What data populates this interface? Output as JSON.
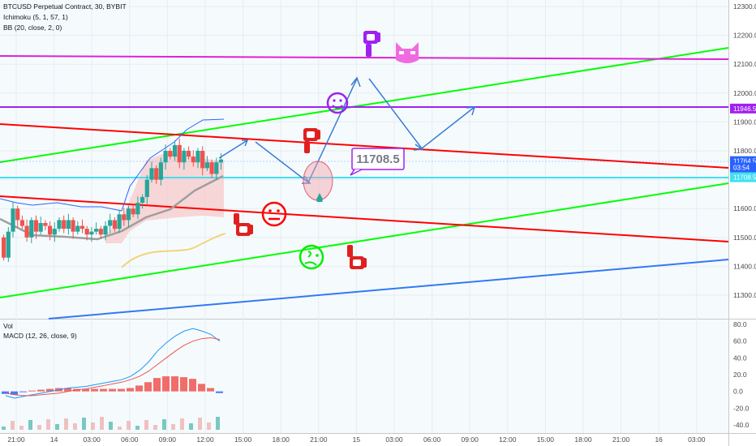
{
  "legend": {
    "title": "BTCUSD Perpetual Contract, 30, BYBIT",
    "ichimoku": "Ichimoku (5, 1, 57, 1)",
    "bb": "BB (20, close, 2, 0)",
    "vol": "Vol",
    "macd": "MACD (12, 26, close, 9)"
  },
  "colors": {
    "up": "#26a69a",
    "down": "#ef5350",
    "red_line": "#ff0000",
    "green_line": "#00ff00",
    "blue_line": "#3179f5",
    "cyan_line": "#40e0f0",
    "purple_line": "#a020f0",
    "magenta_line": "#e020d8",
    "bb_line": "#f5d27a",
    "kijun": "#9e9e9e",
    "ichimoku_blue": "#2962ff"
  },
  "price_axis": {
    "ticks": [
      "12300.0",
      "12200.0",
      "12100.0",
      "12000.0",
      "11900.0",
      "11800.0",
      "11700.0",
      "11600.0",
      "11500.0",
      "11400.0",
      "11300.0"
    ],
    "labels": [
      {
        "text": "11946.5",
        "value": 11946.5,
        "color": "#a020f0"
      },
      {
        "text": "11764.5",
        "value": 11764.5,
        "color": "#2962ff"
      },
      {
        "text": "03:54",
        "value": 11742,
        "color": "#2962ff"
      },
      {
        "text": "11708.5",
        "value": 11708.5,
        "color": "#40e0f0"
      }
    ]
  },
  "macd_axis": {
    "ticks": [
      "80.0",
      "60.0",
      "40.0",
      "20.0",
      "0.0",
      "-20.0",
      "-40.0"
    ]
  },
  "time_axis": {
    "ticks": [
      "21:00",
      "14",
      "03:00",
      "06:00",
      "09:00",
      "12:00",
      "15:00",
      "18:00",
      "21:00",
      "15",
      "03:00",
      "06:00",
      "09:00",
      "12:00",
      "15:00",
      "18:00",
      "21:00",
      "16",
      "03:00"
    ]
  },
  "annotation": {
    "callout": "11708.5"
  },
  "chart_data": {
    "type": "line",
    "title": "BTCUSD Perpetual Contract, 30, BYBIT",
    "ylim": [
      11240,
      12320
    ],
    "horizontal_levels": [
      {
        "name": "magenta",
        "value": 12115
      },
      {
        "name": "purple",
        "value": 11946.5
      },
      {
        "name": "cyan",
        "value": 11708.5
      }
    ],
    "candles_close": [
      11430,
      11520,
      11600,
      11560,
      11540,
      11500,
      11560,
      11520,
      11550,
      11540,
      11510,
      11530,
      11560,
      11530,
      11560,
      11520,
      11540,
      11530,
      11510,
      11520,
      11530,
      11510,
      11540,
      11560,
      11530,
      11580,
      11560,
      11600,
      11580,
      11620,
      11640,
      11700,
      11740,
      11700,
      11760,
      11800,
      11780,
      11820,
      11760,
      11800,
      11780,
      11760,
      11800,
      11740,
      11760,
      11720,
      11760,
      11770
    ],
    "macd": [
      -5,
      -8,
      -6,
      -4,
      -2,
      0,
      2,
      4,
      5,
      6,
      8,
      10,
      12,
      14,
      18,
      25,
      35,
      48,
      58,
      66,
      72,
      75,
      72,
      68,
      60
    ],
    "signal": [
      -2,
      -4,
      -5,
      -5,
      -4,
      -3,
      -2,
      0,
      2,
      3,
      5,
      7,
      9,
      11,
      14,
      18,
      24,
      32,
      40,
      48,
      55,
      60,
      63,
      64,
      62
    ]
  }
}
